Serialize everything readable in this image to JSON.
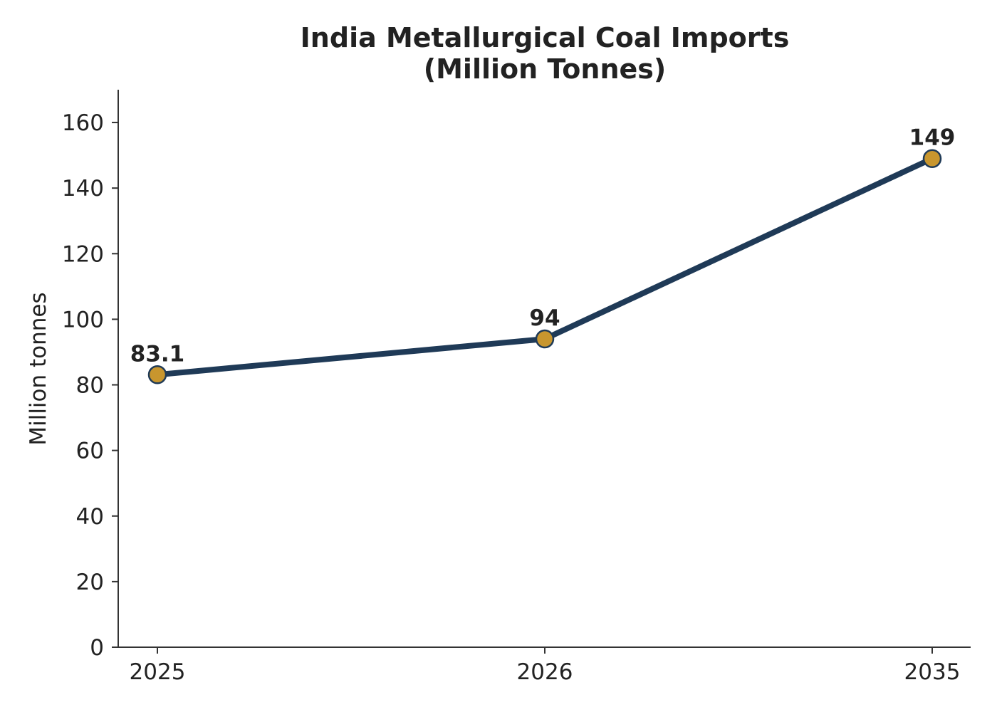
{
  "chart_data": {
    "type": "line",
    "title_lines": [
      "India Metallurgical Coal Imports",
      "(Million Tonnes)"
    ],
    "xlabel": "",
    "ylabel": "Million tonnes",
    "categories": [
      "2025",
      "2026",
      "2035"
    ],
    "series": [
      {
        "values": [
          83.1,
          94,
          149
        ]
      }
    ],
    "data_labels": [
      "83.1",
      "94",
      "149"
    ],
    "ylim": [
      0,
      170
    ],
    "yticks": [
      0,
      20,
      40,
      60,
      80,
      100,
      120,
      140,
      160
    ],
    "ytick_labels": [
      "0",
      "20",
      "40",
      "60",
      "80",
      "100",
      "120",
      "140",
      "160"
    ],
    "grid": false,
    "line_color": "#1f3a57",
    "marker_color": "#c8962e",
    "axis_color": "#333333"
  }
}
